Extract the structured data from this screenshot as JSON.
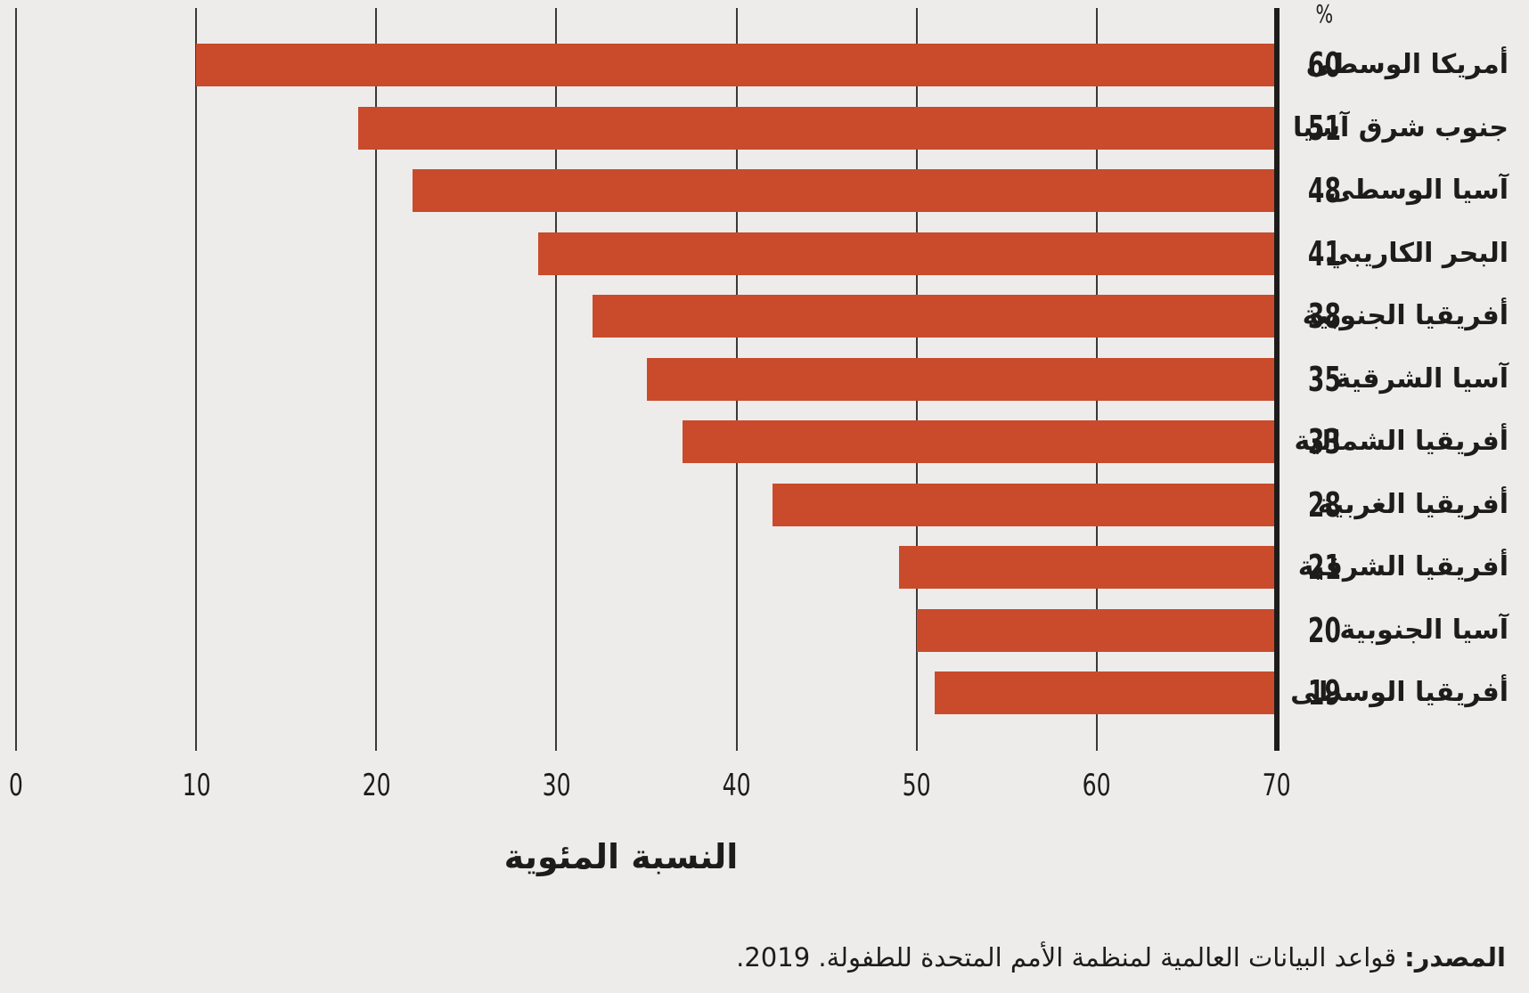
{
  "chart_data": {
    "type": "bar",
    "orientation": "horizontal_rtl",
    "title": "",
    "unit_symbol": "%",
    "xlabel": "النسبة المئوية",
    "x_ticks": [
      0,
      10,
      20,
      30,
      40,
      50,
      60,
      70
    ],
    "xlim": [
      0,
      70
    ],
    "grid": true,
    "legend": "none",
    "categories": [
      "أمريكا الوسطى",
      "جنوب شرق آسيا",
      "آسيا الوسطى",
      "البحر الكاريبي",
      "أفريقيا الجنوبية",
      "آسيا الشرقية",
      "أفريقيا الشمالية",
      "أفريقيا الغربية",
      "أفريقيا الشرقية",
      "آسيا الجنوبية",
      "أفريقيا الوسطى"
    ],
    "values": [
      60,
      51,
      48,
      41,
      38,
      35,
      33,
      28,
      21,
      20,
      19
    ],
    "bar_color": "#c94b2b",
    "background_color": "#edeceb",
    "text_color": "#1d1c1a"
  },
  "source": {
    "prefix": "المصدر:",
    "text": "قواعد البيانات العالمية لمنظمة الأمم المتحدة للطفولة. 2019."
  }
}
